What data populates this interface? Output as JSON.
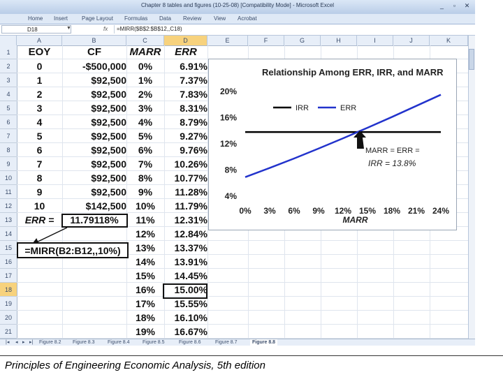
{
  "window": {
    "title": "Chapter 8 tables and figures (10-25-08)  [Compatibility Mode] - Microsoft Excel",
    "controls": [
      "_",
      "▫",
      "✕"
    ]
  },
  "ribbon": {
    "tabs": [
      "Home",
      "Insert",
      "Page Layout",
      "Formulas",
      "Data",
      "Review",
      "View",
      "Acrobat"
    ]
  },
  "formula_bar": {
    "name_box": "D18",
    "fx": "fx",
    "formula": "=MIRR($B$2:$B$12,,C18)"
  },
  "columns": [
    "A",
    "B",
    "C",
    "D",
    "E",
    "F",
    "G",
    "H",
    "I",
    "J",
    "K"
  ],
  "selected_column": "D",
  "rows": [
    "1",
    "2",
    "3",
    "4",
    "5",
    "6",
    "7",
    "8",
    "9",
    "10",
    "11",
    "12",
    "13",
    "14",
    "15",
    "16",
    "17",
    "18",
    "19",
    "20",
    "21"
  ],
  "selected_row": "18",
  "sheet": {
    "headers": {
      "a": "EOY",
      "b": "CF",
      "c": "MARR",
      "d": "ERR"
    },
    "eoy": [
      "0",
      "1",
      "2",
      "3",
      "4",
      "5",
      "6",
      "7",
      "8",
      "9",
      "10"
    ],
    "cf": [
      "-$500,000",
      "$92,500",
      "$92,500",
      "$92,500",
      "$92,500",
      "$92,500",
      "$92,500",
      "$92,500",
      "$92,500",
      "$92,500",
      "$142,500"
    ],
    "marr": [
      "0%",
      "1%",
      "2%",
      "3%",
      "4%",
      "5%",
      "6%",
      "7%",
      "8%",
      "9%",
      "10%",
      "11%",
      "12%",
      "13%",
      "14%",
      "15%",
      "16%",
      "17%",
      "18%",
      "19%"
    ],
    "err": [
      "6.91%",
      "7.37%",
      "7.83%",
      "8.31%",
      "8.79%",
      "9.27%",
      "9.76%",
      "10.26%",
      "10.77%",
      "11.28%",
      "11.79%",
      "12.31%",
      "12.84%",
      "13.37%",
      "13.91%",
      "14.45%",
      "15.00%",
      "15.55%",
      "16.10%",
      "16.67%"
    ],
    "err_label": "ERR =",
    "mirr_value": "11.79118%",
    "mirr_formula": "=MIRR(B2:B12,,10%)"
  },
  "chart_data": {
    "type": "line",
    "title": "Relationship Among ERR, IRR, and MARR",
    "xlabel": "MARR",
    "ylabel": "",
    "xlim": [
      0,
      24
    ],
    "ylim": [
      4,
      20
    ],
    "x_ticks": [
      "0%",
      "3%",
      "6%",
      "9%",
      "12%",
      "15%",
      "18%",
      "21%",
      "24%"
    ],
    "y_ticks": [
      "4%",
      "8%",
      "12%",
      "16%",
      "20%"
    ],
    "series": [
      {
        "name": "IRR",
        "color": "#000000",
        "x": [
          0,
          24
        ],
        "y": [
          13.8,
          13.8
        ]
      },
      {
        "name": "ERR",
        "color": "#2233cc",
        "x": [
          0,
          3,
          6,
          9,
          12,
          15,
          18,
          24
        ],
        "y": [
          6.91,
          8.31,
          9.76,
          11.28,
          12.84,
          14.45,
          16.1,
          19.5
        ]
      }
    ],
    "annotation": {
      "line1": "MARR = ERR =",
      "line2": "IRR = 13.8%"
    }
  },
  "sheet_tabs": [
    "Figure 8.2",
    "Figure 8.3",
    "Figure 8.4",
    "Figure 8.5",
    "Figure 8.6",
    "Figure 8.7",
    "Figure 8.8"
  ],
  "active_tab": "Figure 8.8",
  "caption": "Principles of Engineering Economic Analysis, 5th edition"
}
